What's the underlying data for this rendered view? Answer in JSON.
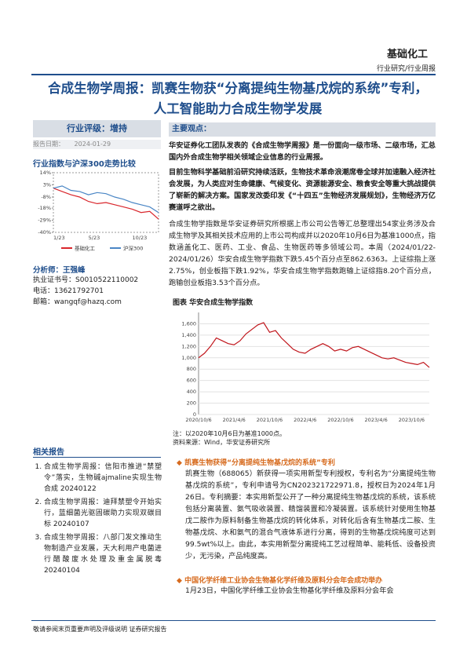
{
  "header": {
    "sector": "基础化工",
    "category": "行业研究/行业周报"
  },
  "title": "合成生物学周报：凯赛生物获“分离提纯生物基戊烷的系统”专利，人工智能助力合成生物学发展",
  "sidebar": {
    "rating": "行业评级：增持",
    "date_label": "报告日期：",
    "date": "2024-01-29",
    "chart_heading": "行业指数与沪深300走势比较",
    "analyst": "分析师：王强峰",
    "license": "执业证书号：S0010522110002",
    "phone": "电话：13621792701",
    "email": "邮箱：wangqf@hazq.com",
    "related_heading": "相关报告",
    "related": [
      "合成生物学周报：信阳市推进“禁塑令”落实，生物碱ajmaline实现生物合成 20240122",
      "合成生物学周报：迪拜禁塑令开始实行，蓝细菌光驱固碳助力实现双碳目标 20240107",
      "合成生物学周报：八部门发文推动生物制造产业发展，天大利用产电菌进行醋酸废水处理及重金属脱毒 20240104"
    ]
  },
  "main": {
    "heading": "主要观点：",
    "paragraphs": [
      "华安证券化工团队发表的《合成生物学周报》是一份面向一级市场、二级市场，汇总国内外合成生物学相关领域企业信息的行业周报。",
      "目前生物科学基础前沿研究持续活跃，生物技术革命浪潮席卷全球并加速融入经济社会发展，为人类应对生命健康、气候变化、资源能源安全、粮食安全等重大挑战提供了崭新的解决方案。国家发改委印发《“十四五”生物经济发展规划》，生物经济万亿赛道呼之欲出。",
      "合成生物学指数是华安证券研究所根据上市公司公告等汇总整理出54家业务涉及合成生物学及其相关技术应用的上市公司构成并以2020年10月6日为基准1000点，指数涵盖化工、医药、工业、食品、生物医药等多领域公司。本周（2024/01/22-2024/01/26）华安合成生物学指数下跌5.45个百分点至862.6363。上证综指上涨2.75%，创业板指下跌1.92%，华安合成生物学指数跑输上证综指8.20个百分点，跑输创业板指3.53个百分点。"
    ],
    "chart_title": "图表 华安合成生物学指数",
    "note": "注：以2020年10月6日为基准1000点。",
    "source": "资料来源：Wind，华安证券研究所",
    "news": [
      {
        "title": "凯赛生物获得“分离提纯生物基戊烷的系统”专利",
        "body": "凯赛生物（688065）新获得一项实用新型专利授权，专利名为“分离提纯生物基戊烷的系统”，专利申请号为CN202321722971.8，授权日为2024年1月26日。专利摘要：本实用新型公开了一种分离提纯生物基戊烷的系统，该系统包括分离装置、氨气吸收装置、精馏装置和冷凝装置。该系统针对使用生物基戊二胺作为原料制备生物基戊烷的转化体系，对转化后含有生物基戊二胺、生物基戊烷、水和氨气的混合气液体系进行分离，得到的生物基戊烷纯度可达到99.5wt%以上。由此，本实用新型分离提纯工艺过程简单、能耗低、设备投资少，无污染，产品纯度高。"
      },
      {
        "title": "中国化学纤维工业协会生物基化学纤维及原料分会年会成功举办",
        "body": "1月23日，中国化学纤维工业协会生物基化学纤维及原料分会年会"
      }
    ]
  },
  "footer": {
    "left": "敬请参阅末页重要声明及评级说明",
    "right": "证券研究报告"
  },
  "chart_data": [
    {
      "type": "line",
      "categories": [
        "1/23",
        null,
        null,
        null,
        "5/23",
        null,
        null,
        null,
        null,
        "10/23",
        null,
        null,
        null
      ],
      "series": [
        {
          "name": "基础化工",
          "color": "#d9262c",
          "values": [
            0,
            -3,
            -6,
            -8,
            -12,
            -14,
            -13,
            -15,
            -17,
            -19,
            -22,
            -21,
            -28
          ]
        },
        {
          "name": "沪深300",
          "color": "#4a86c5",
          "values": [
            0,
            2,
            -2,
            -3,
            -6,
            -4,
            -5,
            -8,
            -10,
            -13,
            -15,
            -17,
            -22
          ]
        }
      ],
      "ylim": [
        -40,
        14
      ],
      "yticks": [
        {
          "value": 14,
          "label": "14%"
        },
        {
          "value": 3,
          "label": "3%"
        },
        {
          "value": -8,
          "label": "-8%"
        },
        {
          "value": -18,
          "label": "-18%"
        },
        {
          "value": -29,
          "label": "-29%"
        },
        {
          "value": -40,
          "label": "-40%"
        }
      ],
      "grid": false
    },
    {
      "type": "line",
      "categories": [
        "2020/10/6",
        null,
        null,
        null,
        null,
        null,
        "2021/4/6",
        null,
        null,
        null,
        null,
        null,
        "2021/10/6",
        null,
        null,
        null,
        null,
        null,
        "2022/4/6",
        null,
        null,
        null,
        null,
        null,
        "2022/10/6",
        null,
        null,
        null,
        null,
        null,
        "2023/4/6",
        null,
        null,
        null,
        null,
        null,
        "2023/10/6",
        null,
        null,
        null
      ],
      "series": [
        {
          "name": "华安合成生物学指数",
          "color": "#c0151b",
          "values": [
            1000,
            1080,
            1200,
            1350,
            1300,
            1250,
            1230,
            1300,
            1420,
            1500,
            1580,
            1620,
            1450,
            1480,
            1350,
            1250,
            1150,
            1100,
            1080,
            1150,
            1200,
            1250,
            1200,
            1120,
            1150,
            1120,
            1180,
            1200,
            1150,
            1100,
            1050,
            1000,
            980,
            1000,
            960,
            920,
            900,
            880,
            920,
            830
          ]
        }
      ],
      "ylim": [
        0,
        1800
      ],
      "yticks": [
        0,
        200,
        400,
        600,
        800,
        {
          "value": 1000,
          "label": "1,000"
        },
        {
          "value": 1200,
          "label": "1,200"
        },
        {
          "value": 1400,
          "label": "1,400"
        },
        {
          "value": 1600,
          "label": "1,600"
        }
      ],
      "grid": true
    }
  ]
}
